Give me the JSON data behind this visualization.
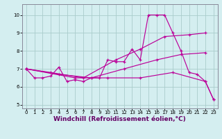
{
  "title": "",
  "xlabel": "Windchill (Refroidissement éolien,°C)",
  "bg_color": "#d4eef0",
  "line_color": "#bb0099",
  "grid_color": "#aacccc",
  "xlim": [
    -0.5,
    23.5
  ],
  "ylim": [
    4.8,
    10.6
  ],
  "yticks": [
    5,
    6,
    7,
    8,
    9,
    10
  ],
  "xticks": [
    0,
    1,
    2,
    3,
    4,
    5,
    6,
    7,
    8,
    9,
    10,
    11,
    12,
    13,
    14,
    15,
    16,
    17,
    18,
    19,
    20,
    21,
    22,
    23
  ],
  "series": [
    [
      0,
      7.0
    ],
    [
      1,
      6.5
    ],
    [
      2,
      6.5
    ],
    [
      3,
      6.6
    ],
    [
      4,
      7.1
    ],
    [
      5,
      6.3
    ],
    [
      6,
      6.4
    ],
    [
      7,
      6.3
    ],
    [
      8,
      6.5
    ],
    [
      9,
      6.5
    ],
    [
      10,
      7.5
    ],
    [
      11,
      7.4
    ],
    [
      12,
      7.4
    ],
    [
      13,
      8.1
    ],
    [
      14,
      7.5
    ],
    [
      15,
      10.0
    ],
    [
      16,
      10.0
    ],
    [
      17,
      10.0
    ],
    [
      18,
      9.0
    ],
    [
      19,
      8.0
    ],
    [
      20,
      6.8
    ],
    [
      21,
      6.7
    ],
    [
      22,
      6.3
    ],
    [
      23,
      5.3
    ]
  ],
  "line2": [
    [
      0,
      7.0
    ],
    [
      3,
      6.8
    ],
    [
      7,
      6.5
    ],
    [
      11,
      7.5
    ],
    [
      14,
      8.1
    ],
    [
      17,
      8.8
    ],
    [
      20,
      8.9
    ],
    [
      22,
      9.0
    ]
  ],
  "line3": [
    [
      0,
      7.0
    ],
    [
      4,
      6.7
    ],
    [
      8,
      6.5
    ],
    [
      12,
      7.0
    ],
    [
      16,
      7.5
    ],
    [
      19,
      7.8
    ],
    [
      22,
      7.9
    ]
  ],
  "line4": [
    [
      0,
      7.0
    ],
    [
      6,
      6.5
    ],
    [
      10,
      6.5
    ],
    [
      14,
      6.5
    ],
    [
      18,
      6.8
    ],
    [
      22,
      6.3
    ],
    [
      23,
      5.3
    ]
  ],
  "tick_fontsize": 5.0,
  "xlabel_fontsize": 6.5,
  "xlabel_color": "#660066",
  "spine_color": "#888899"
}
